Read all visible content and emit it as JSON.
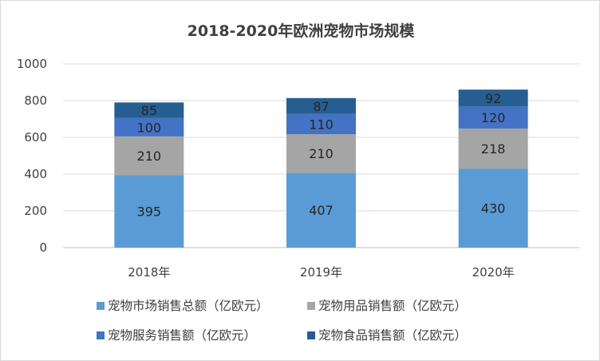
{
  "chart_data": {
    "type": "bar",
    "stacked": true,
    "title": "2018-2020年欧洲宠物市场规模",
    "categories": [
      "2018年",
      "2019年",
      "2020年"
    ],
    "series": [
      {
        "name": "宠物市场销售总额（亿欧元）",
        "values": [
          395,
          407,
          430
        ],
        "color": "#5b9bd5"
      },
      {
        "name": "宠物用品销售额（亿欧元）",
        "values": [
          210,
          210,
          218
        ],
        "color": "#a5a5a5"
      },
      {
        "name": "宠物服务销售额（亿欧元）",
        "values": [
          100,
          110,
          120
        ],
        "color": "#4472c4"
      },
      {
        "name": "宠物食品销售额（亿欧元）",
        "values": [
          85,
          87,
          92
        ],
        "color": "#255e91"
      }
    ],
    "y_ticks": [
      "0",
      "200",
      "400",
      "600",
      "800",
      "1000"
    ],
    "ylim": [
      0,
      1000
    ],
    "grid": true,
    "xlabel": "",
    "ylabel": "",
    "legend": "bottom"
  }
}
